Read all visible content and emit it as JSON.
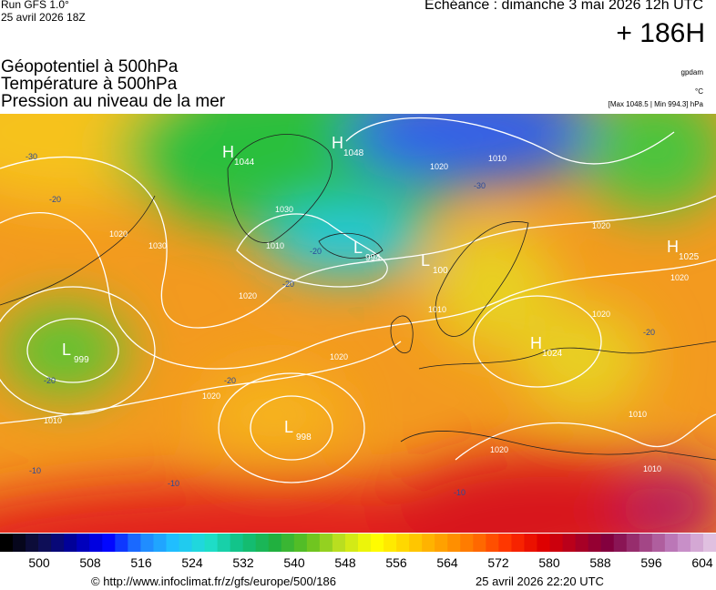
{
  "header": {
    "run": "Run GFS 1.0°",
    "run_date": "25 avril 2026 18Z",
    "valid": "Echéance : dimanche 3 mai 2026 12h UTC",
    "lead": "+ 186H",
    "fields": [
      "Géopotentiel à 500hPa",
      "Température à 500hPa",
      "Pression au niveau de la mer"
    ],
    "units": [
      "gpdam",
      "°C",
      "[Max 1048.5 | Min 994.3] hPa"
    ]
  },
  "map": {
    "centers": [
      {
        "letter": "H",
        "value": 1044
      },
      {
        "letter": "H",
        "value": 1048
      },
      {
        "letter": "L",
        "value": 994
      },
      {
        "letter": "L",
        "value": 100
      },
      {
        "letter": "H",
        "value": 1025
      },
      {
        "letter": "L",
        "value": 999
      },
      {
        "letter": "H",
        "value": 1024
      },
      {
        "letter": "L",
        "value": 998
      }
    ],
    "isobar_labels": [
      1030,
      1020,
      1020,
      1020,
      1020,
      1010,
      1010,
      1010,
      1020,
      1020,
      1020,
      1020,
      1020,
      1010,
      1010,
      1030,
      1010
    ],
    "temperature_labels": [
      -30,
      -20,
      -20,
      -20,
      -20,
      -30,
      -20,
      -20,
      -10,
      -10,
      -10
    ]
  },
  "colorbar": {
    "labels": [
      500,
      508,
      516,
      524,
      532,
      540,
      548,
      556,
      564,
      572,
      580,
      588,
      596,
      604
    ]
  },
  "footer": {
    "url": "© http://www.infoclimat.fr/z/gfs/europe/500/186",
    "date": "25 avril 2026 22:20 UTC"
  }
}
